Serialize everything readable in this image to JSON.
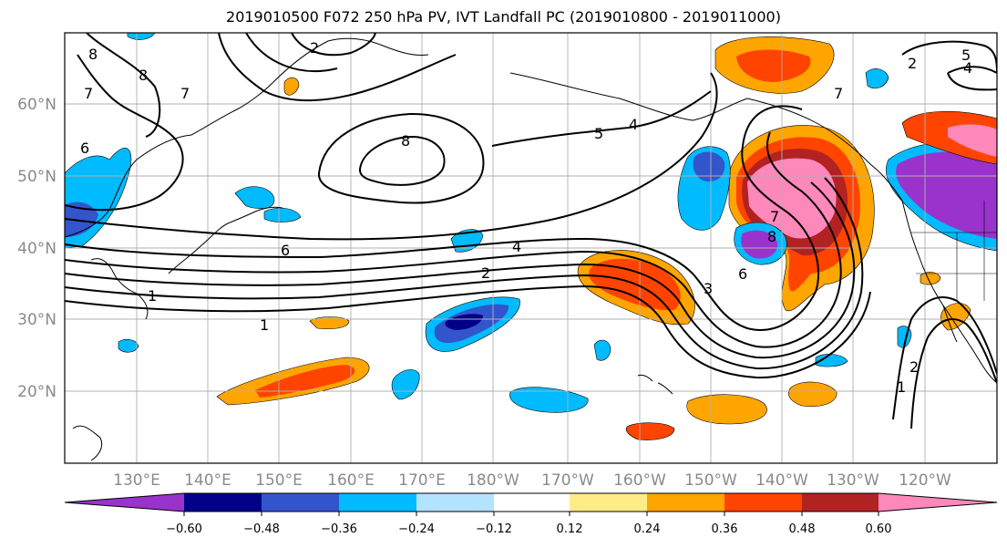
{
  "title": "2019010500 F072 250 hPa PV, IVT Landfall PC (2019010800 - 2019011000)",
  "map": {
    "lat_labels": [
      "60°N",
      "50°N",
      "40°N",
      "30°N",
      "20°N"
    ],
    "lon_labels": [
      "130°E",
      "140°E",
      "150°E",
      "160°E",
      "170°E",
      "180°W",
      "170°W",
      "160°W",
      "150°W",
      "140°W",
      "130°W",
      "120°W"
    ],
    "contour_labels": [
      "8",
      "8",
      "7",
      "7",
      "6",
      "2",
      "8",
      "5",
      "4",
      "6",
      "4",
      "2",
      "1",
      "1",
      "8",
      "7",
      "3",
      "6",
      "7",
      "1",
      "2",
      "2",
      "5",
      "4"
    ]
  },
  "colorbar": {
    "tick_labels": [
      "−0.60",
      "−0.48",
      "−0.36",
      "−0.24",
      "−0.12",
      "0.12",
      "0.24",
      "0.36",
      "0.48",
      "0.60"
    ],
    "colors": [
      "#9933cc",
      "#000088",
      "#3355cc",
      "#00bbff",
      "#b3e3ff",
      "#ffffff",
      "#ffeb88",
      "#ffa500",
      "#ff4400",
      "#b22222",
      "#ff88bb"
    ]
  }
}
